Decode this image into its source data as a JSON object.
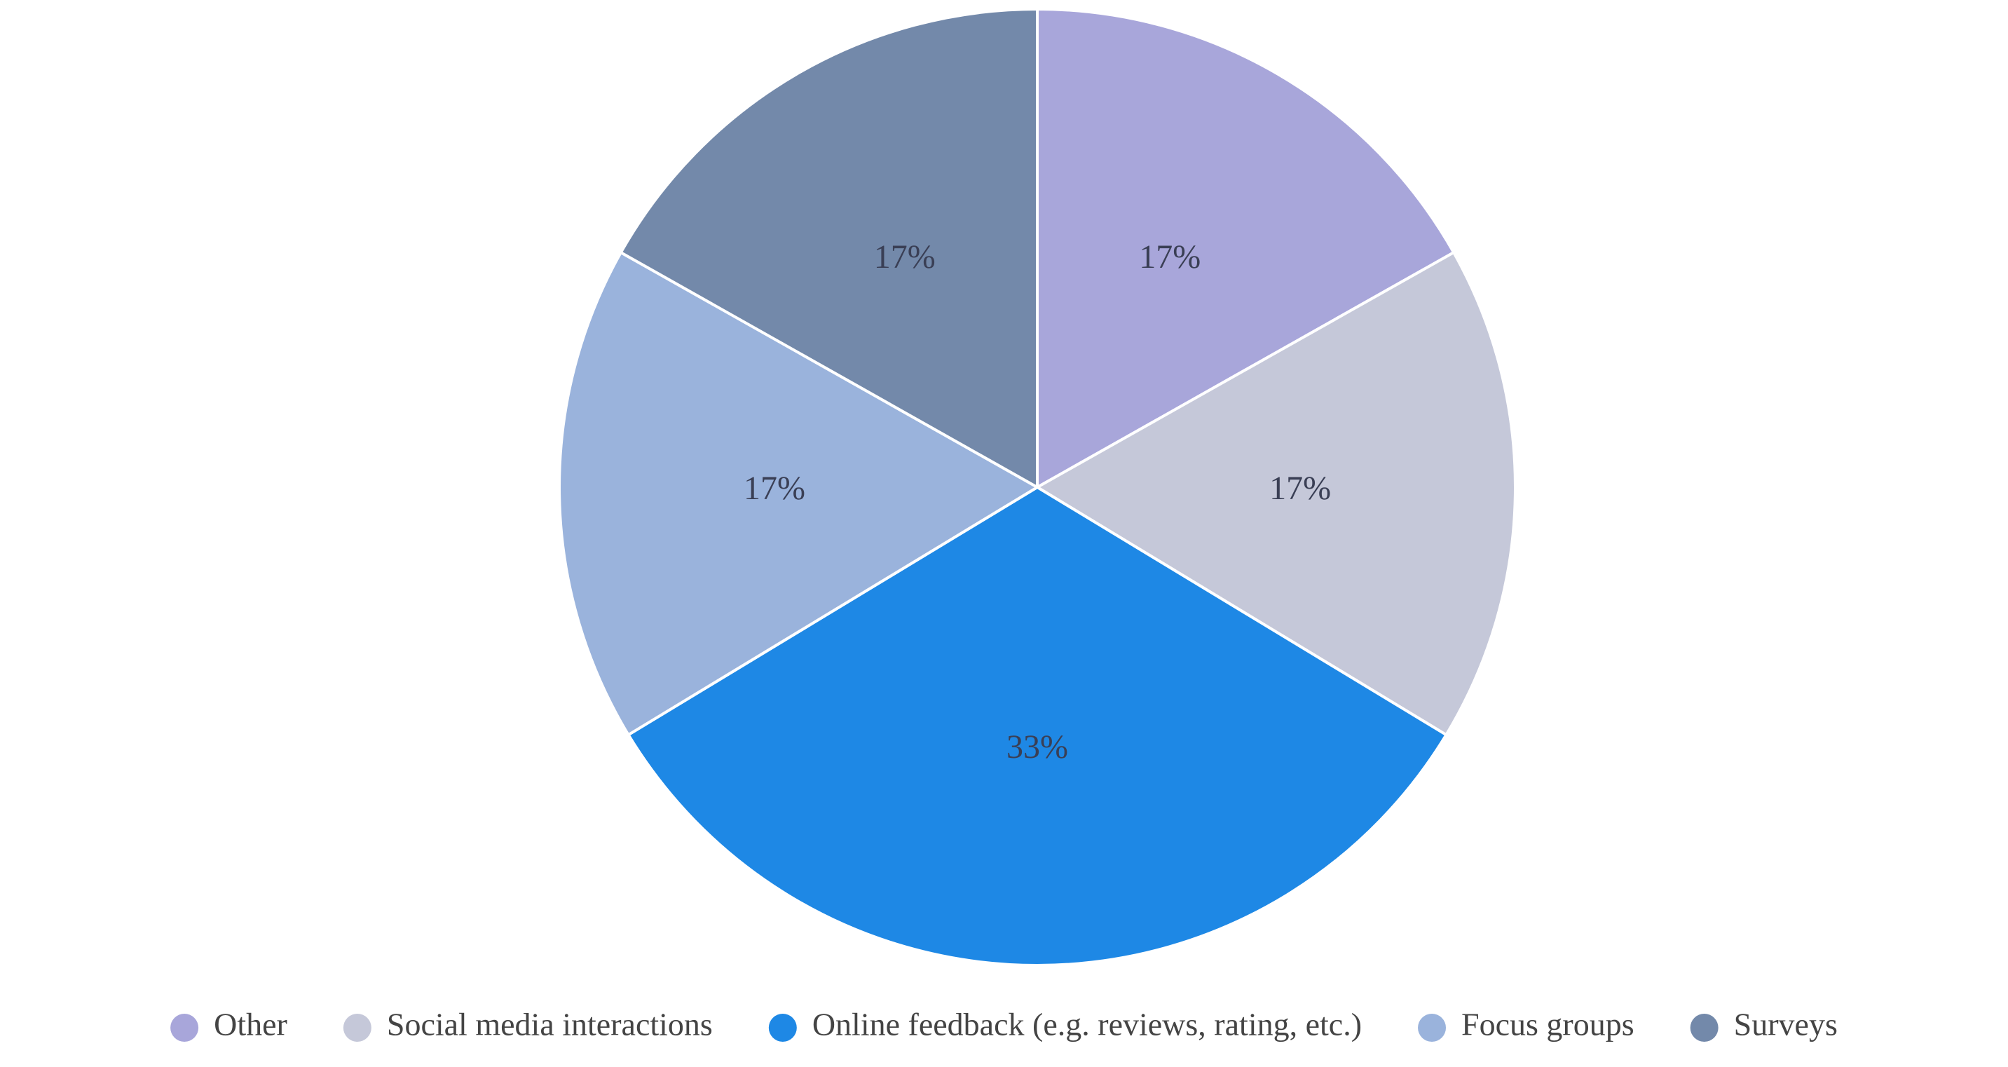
{
  "chart_data": {
    "type": "pie",
    "title": "",
    "legend_position": "bottom",
    "slices": [
      {
        "name": "Other",
        "value": 17,
        "label": "17%",
        "color": "#a8a6da"
      },
      {
        "name": "Social media interactions",
        "value": 17,
        "label": "17%",
        "color": "#c5c8d9"
      },
      {
        "name": "Online feedback (e.g. reviews, rating, etc.)",
        "value": 33,
        "label": "33%",
        "color": "#1e88e5"
      },
      {
        "name": "Focus groups",
        "value": 17,
        "label": "17%",
        "color": "#9ab3dc"
      },
      {
        "name": "Surveys",
        "value": 17,
        "label": "17%",
        "color": "#7389aa"
      }
    ]
  }
}
